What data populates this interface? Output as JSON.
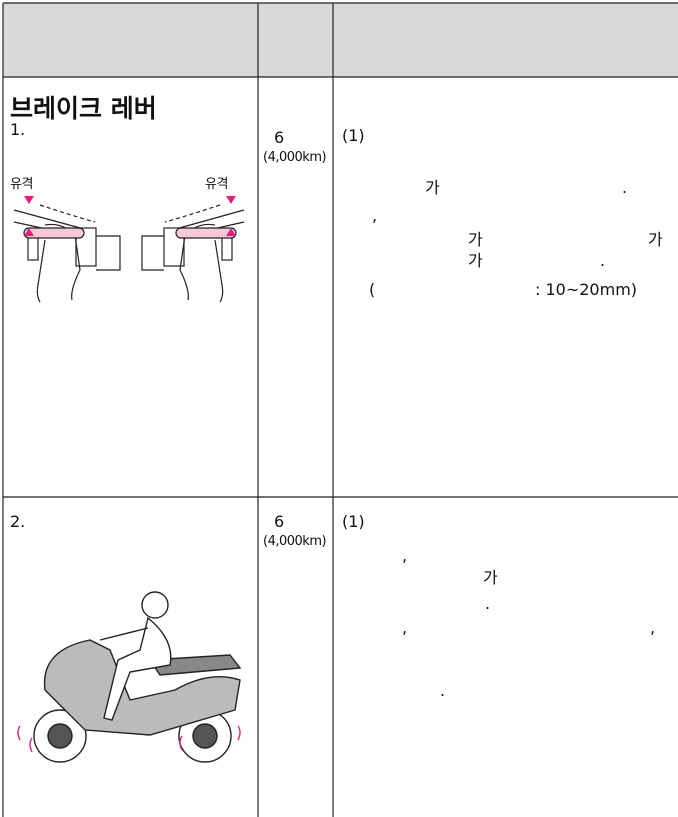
{
  "rows": [
    {
      "title": "브레이크 레버",
      "number": "1.",
      "illustration_labels": [
        "유격",
        "유격"
      ],
      "interval": {
        "months": "6",
        "distance": "(4,000km)"
      },
      "notes": [
        "(1)",
        "가",
        ".",
        ",",
        "가",
        "가",
        "가",
        ".",
        "(",
        ": 10~20mm)"
      ]
    },
    {
      "number": "2.",
      "interval": {
        "months": "6",
        "distance": "(4,000km)"
      },
      "notes": [
        "(1)",
        ",",
        "가",
        ".",
        ",",
        ",",
        "."
      ]
    }
  ]
}
